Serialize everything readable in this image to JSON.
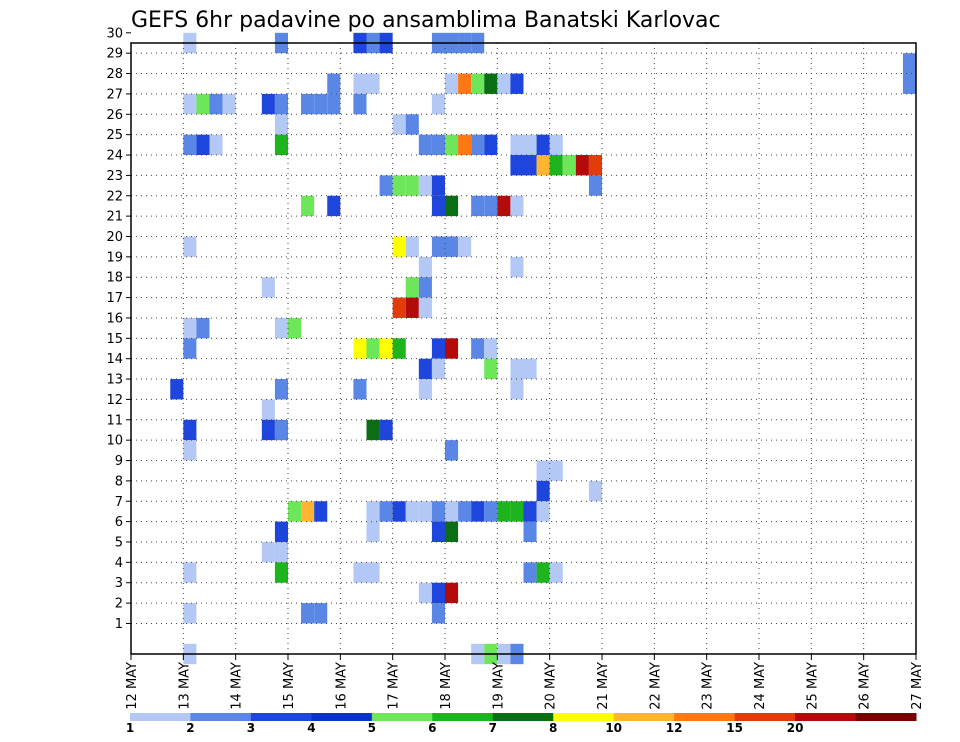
{
  "chart_data": {
    "type": "heatmap",
    "title": "GEFS 6hr padavine po ansamblima Banatski Karlovac",
    "x_tick_labels": [
      "12 MAY",
      "13 MAY",
      "14 MAY",
      "15 MAY",
      "16 MAY",
      "17 MAY",
      "18 MAY",
      "19 MAY",
      "20 MAY",
      "21 MAY",
      "22 MAY",
      "23 MAY",
      "24 MAY",
      "25 MAY",
      "26 MAY",
      "27 MAY"
    ],
    "y_tick_labels": [
      "1",
      "2",
      "3",
      "4",
      "5",
      "6",
      "7",
      "8",
      "9",
      "10",
      "11",
      "12",
      "13",
      "14",
      "15",
      "16",
      "17",
      "18",
      "19",
      "20",
      "21",
      "22",
      "23",
      "24",
      "25",
      "26",
      "27",
      "28",
      "29",
      "30"
    ],
    "xlim": [
      0,
      60
    ],
    "ylim": [
      0,
      30
    ],
    "grid": true,
    "colorbar": {
      "labels": [
        "1",
        "2",
        "3",
        "4",
        "5",
        "6",
        "7",
        "8",
        "10",
        "12",
        "15",
        "20"
      ],
      "colors": [
        "#b4c8f5",
        "#5a87e6",
        "#1e46dc",
        "#0a32c8",
        "#6ee65a",
        "#1eb41e",
        "#0a6e14",
        "#ffff00",
        "#ffb432",
        "#ff7814",
        "#e13c0a",
        "#b40a0a",
        "#780000"
      ]
    },
    "cells": [
      {
        "x": 4,
        "y": 30,
        "v": 1
      },
      {
        "x": 11,
        "y": 30,
        "v": 2
      },
      {
        "x": 17,
        "y": 30,
        "v": 3
      },
      {
        "x": 18,
        "y": 30,
        "v": 2
      },
      {
        "x": 19,
        "y": 30,
        "v": 3
      },
      {
        "x": 23,
        "y": 30,
        "v": 2
      },
      {
        "x": 24,
        "y": 30,
        "v": 2
      },
      {
        "x": 25,
        "y": 30,
        "v": 2
      },
      {
        "x": 26,
        "y": 30,
        "v": 2
      },
      {
        "x": 59,
        "y": 29,
        "v": 2
      },
      {
        "x": 15,
        "y": 28,
        "v": 2
      },
      {
        "x": 17,
        "y": 28,
        "v": 1
      },
      {
        "x": 18,
        "y": 28,
        "v": 1
      },
      {
        "x": 24,
        "y": 28,
        "v": 1
      },
      {
        "x": 25,
        "y": 28,
        "v": 12
      },
      {
        "x": 26,
        "y": 28,
        "v": 5
      },
      {
        "x": 27,
        "y": 28,
        "v": 7
      },
      {
        "x": 28,
        "y": 28,
        "v": 1
      },
      {
        "x": 29,
        "y": 28,
        "v": 3
      },
      {
        "x": 59,
        "y": 28,
        "v": 2
      },
      {
        "x": 4,
        "y": 27,
        "v": 1
      },
      {
        "x": 5,
        "y": 27,
        "v": 5
      },
      {
        "x": 6,
        "y": 27,
        "v": 2
      },
      {
        "x": 7,
        "y": 27,
        "v": 1
      },
      {
        "x": 10,
        "y": 27,
        "v": 3
      },
      {
        "x": 11,
        "y": 27,
        "v": 2
      },
      {
        "x": 13,
        "y": 27,
        "v": 2
      },
      {
        "x": 14,
        "y": 27,
        "v": 2
      },
      {
        "x": 15,
        "y": 27,
        "v": 2
      },
      {
        "x": 17,
        "y": 27,
        "v": 2
      },
      {
        "x": 23,
        "y": 27,
        "v": 1
      },
      {
        "x": 11,
        "y": 26,
        "v": 1
      },
      {
        "x": 20,
        "y": 26,
        "v": 1
      },
      {
        "x": 21,
        "y": 26,
        "v": 2
      },
      {
        "x": 4,
        "y": 25,
        "v": 2
      },
      {
        "x": 5,
        "y": 25,
        "v": 3
      },
      {
        "x": 6,
        "y": 25,
        "v": 1
      },
      {
        "x": 11,
        "y": 25,
        "v": 6
      },
      {
        "x": 22,
        "y": 25,
        "v": 2
      },
      {
        "x": 23,
        "y": 25,
        "v": 2
      },
      {
        "x": 24,
        "y": 25,
        "v": 5
      },
      {
        "x": 25,
        "y": 25,
        "v": 12
      },
      {
        "x": 26,
        "y": 25,
        "v": 2
      },
      {
        "x": 27,
        "y": 25,
        "v": 3
      },
      {
        "x": 29,
        "y": 25,
        "v": 1
      },
      {
        "x": 30,
        "y": 25,
        "v": 1
      },
      {
        "x": 31,
        "y": 25,
        "v": 3
      },
      {
        "x": 32,
        "y": 25,
        "v": 1
      },
      {
        "x": 29,
        "y": 24,
        "v": 3
      },
      {
        "x": 30,
        "y": 24,
        "v": 3
      },
      {
        "x": 31,
        "y": 24,
        "v": 10
      },
      {
        "x": 32,
        "y": 24,
        "v": 6
      },
      {
        "x": 33,
        "y": 24,
        "v": 5
      },
      {
        "x": 34,
        "y": 24,
        "v": 20
      },
      {
        "x": 35,
        "y": 24,
        "v": 15
      },
      {
        "x": 19,
        "y": 23,
        "v": 2
      },
      {
        "x": 20,
        "y": 23,
        "v": 5
      },
      {
        "x": 21,
        "y": 23,
        "v": 5
      },
      {
        "x": 22,
        "y": 23,
        "v": 1
      },
      {
        "x": 23,
        "y": 23,
        "v": 3
      },
      {
        "x": 35,
        "y": 23,
        "v": 2
      },
      {
        "x": 13,
        "y": 22,
        "v": 5
      },
      {
        "x": 15,
        "y": 22,
        "v": 3
      },
      {
        "x": 23,
        "y": 22,
        "v": 3
      },
      {
        "x": 24,
        "y": 22,
        "v": 7
      },
      {
        "x": 26,
        "y": 22,
        "v": 2
      },
      {
        "x": 27,
        "y": 22,
        "v": 2
      },
      {
        "x": 28,
        "y": 22,
        "v": 20
      },
      {
        "x": 29,
        "y": 22,
        "v": 1
      },
      {
        "x": 4,
        "y": 20,
        "v": 1
      },
      {
        "x": 20,
        "y": 20,
        "v": 8
      },
      {
        "x": 21,
        "y": 20,
        "v": 1
      },
      {
        "x": 23,
        "y": 20,
        "v": 2
      },
      {
        "x": 24,
        "y": 20,
        "v": 2
      },
      {
        "x": 25,
        "y": 20,
        "v": 1
      },
      {
        "x": 22,
        "y": 19,
        "v": 1
      },
      {
        "x": 29,
        "y": 19,
        "v": 1
      },
      {
        "x": 10,
        "y": 18,
        "v": 1
      },
      {
        "x": 21,
        "y": 18,
        "v": 5
      },
      {
        "x": 22,
        "y": 18,
        "v": 2
      },
      {
        "x": 20,
        "y": 17,
        "v": 15
      },
      {
        "x": 21,
        "y": 17,
        "v": 20
      },
      {
        "x": 22,
        "y": 17,
        "v": 1
      },
      {
        "x": 4,
        "y": 16,
        "v": 1
      },
      {
        "x": 5,
        "y": 16,
        "v": 2
      },
      {
        "x": 11,
        "y": 16,
        "v": 1
      },
      {
        "x": 12,
        "y": 16,
        "v": 5
      },
      {
        "x": 4,
        "y": 15,
        "v": 2
      },
      {
        "x": 17,
        "y": 15,
        "v": 8
      },
      {
        "x": 18,
        "y": 15,
        "v": 5
      },
      {
        "x": 19,
        "y": 15,
        "v": 8
      },
      {
        "x": 20,
        "y": 15,
        "v": 6
      },
      {
        "x": 23,
        "y": 15,
        "v": 3
      },
      {
        "x": 24,
        "y": 15,
        "v": 20
      },
      {
        "x": 26,
        "y": 15,
        "v": 2
      },
      {
        "x": 27,
        "y": 15,
        "v": 1
      },
      {
        "x": 22,
        "y": 14,
        "v": 3
      },
      {
        "x": 23,
        "y": 14,
        "v": 1
      },
      {
        "x": 27,
        "y": 14,
        "v": 5
      },
      {
        "x": 29,
        "y": 14,
        "v": 1
      },
      {
        "x": 30,
        "y": 14,
        "v": 1
      },
      {
        "x": 3,
        "y": 13,
        "v": 3
      },
      {
        "x": 11,
        "y": 13,
        "v": 2
      },
      {
        "x": 17,
        "y": 13,
        "v": 2
      },
      {
        "x": 22,
        "y": 13,
        "v": 1
      },
      {
        "x": 29,
        "y": 13,
        "v": 1
      },
      {
        "x": 10,
        "y": 12,
        "v": 1
      },
      {
        "x": 4,
        "y": 11,
        "v": 3
      },
      {
        "x": 10,
        "y": 11,
        "v": 3
      },
      {
        "x": 11,
        "y": 11,
        "v": 2
      },
      {
        "x": 18,
        "y": 11,
        "v": 7
      },
      {
        "x": 19,
        "y": 11,
        "v": 3
      },
      {
        "x": 4,
        "y": 10,
        "v": 1
      },
      {
        "x": 24,
        "y": 10,
        "v": 2
      },
      {
        "x": 31,
        "y": 9,
        "v": 1
      },
      {
        "x": 32,
        "y": 9,
        "v": 1
      },
      {
        "x": 31,
        "y": 8,
        "v": 3
      },
      {
        "x": 35,
        "y": 8,
        "v": 1
      },
      {
        "x": 12,
        "y": 7,
        "v": 5
      },
      {
        "x": 13,
        "y": 7,
        "v": 10
      },
      {
        "x": 14,
        "y": 7,
        "v": 3
      },
      {
        "x": 18,
        "y": 7,
        "v": 1
      },
      {
        "x": 19,
        "y": 7,
        "v": 2
      },
      {
        "x": 20,
        "y": 7,
        "v": 3
      },
      {
        "x": 21,
        "y": 7,
        "v": 1
      },
      {
        "x": 22,
        "y": 7,
        "v": 1
      },
      {
        "x": 23,
        "y": 7,
        "v": 2
      },
      {
        "x": 24,
        "y": 7,
        "v": 1
      },
      {
        "x": 25,
        "y": 7,
        "v": 2
      },
      {
        "x": 26,
        "y": 7,
        "v": 3
      },
      {
        "x": 27,
        "y": 7,
        "v": 2
      },
      {
        "x": 28,
        "y": 7,
        "v": 6
      },
      {
        "x": 29,
        "y": 7,
        "v": 6
      },
      {
        "x": 30,
        "y": 7,
        "v": 3
      },
      {
        "x": 31,
        "y": 7,
        "v": 1
      },
      {
        "x": 11,
        "y": 6,
        "v": 3
      },
      {
        "x": 18,
        "y": 6,
        "v": 1
      },
      {
        "x": 23,
        "y": 6,
        "v": 3
      },
      {
        "x": 24,
        "y": 6,
        "v": 7
      },
      {
        "x": 30,
        "y": 6,
        "v": 2
      },
      {
        "x": 10,
        "y": 5,
        "v": 1
      },
      {
        "x": 11,
        "y": 5,
        "v": 1
      },
      {
        "x": 4,
        "y": 4,
        "v": 1
      },
      {
        "x": 11,
        "y": 4,
        "v": 6
      },
      {
        "x": 17,
        "y": 4,
        "v": 1
      },
      {
        "x": 18,
        "y": 4,
        "v": 1
      },
      {
        "x": 30,
        "y": 4,
        "v": 2
      },
      {
        "x": 31,
        "y": 4,
        "v": 6
      },
      {
        "x": 32,
        "y": 4,
        "v": 1
      },
      {
        "x": 22,
        "y": 3,
        "v": 1
      },
      {
        "x": 23,
        "y": 3,
        "v": 3
      },
      {
        "x": 24,
        "y": 3,
        "v": 20
      },
      {
        "x": 4,
        "y": 2,
        "v": 1
      },
      {
        "x": 13,
        "y": 2,
        "v": 2
      },
      {
        "x": 14,
        "y": 2,
        "v": 2
      },
      {
        "x": 23,
        "y": 2,
        "v": 2
      },
      {
        "x": 4,
        "y": 0,
        "v": 1
      },
      {
        "x": 26,
        "y": 0,
        "v": 1
      },
      {
        "x": 27,
        "y": 0,
        "v": 5
      },
      {
        "x": 28,
        "y": 0,
        "v": 1
      },
      {
        "x": 29,
        "y": 0,
        "v": 2
      }
    ]
  }
}
